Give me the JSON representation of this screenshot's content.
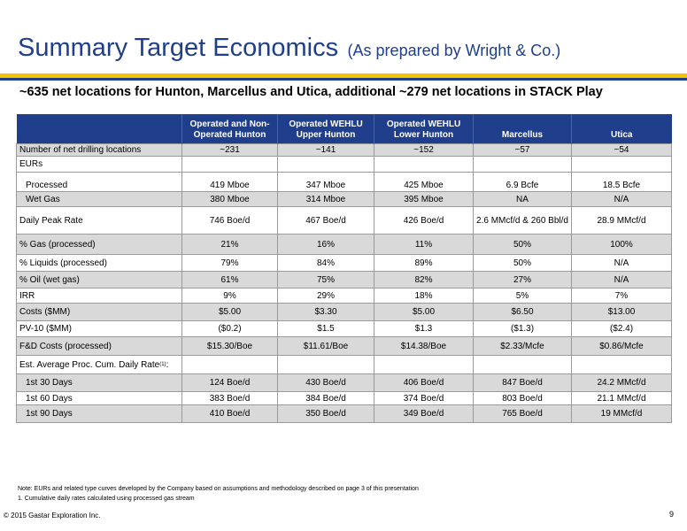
{
  "header": {
    "title": "Summary Target Economics",
    "title_sub": "(As prepared by Wright & Co.)",
    "subtitle": "~635 net locations for Hunton, Marcellus and Utica, additional ~279 net locations in STACK Play"
  },
  "colors": {
    "brand_navy": "#1f3e8c",
    "accent_gold": "#f5c200",
    "row_band": "#d9d9d9"
  },
  "table": {
    "columns": [
      "",
      "Operated and Non-\nOperated Hunton",
      "Operated WEHLU\nUpper Hunton",
      "Operated WEHLU\nLower Hunton",
      "Marcellus",
      "Utica"
    ],
    "rows": {
      "net_locations": {
        "label": "Number of net drilling locations",
        "values": [
          "~231",
          "~141",
          "~152",
          "~57",
          "~54"
        ]
      },
      "eurs": {
        "label": "EURs"
      },
      "processed": {
        "label": "Processed",
        "values": [
          "419 Mboe",
          "347 Mboe",
          "425 Mboe",
          "6.9 Bcfe",
          "18.5 Bcfe"
        ]
      },
      "wet_gas": {
        "label": "Wet Gas",
        "values": [
          "380 Mboe",
          "314 Mboe",
          "395 Mboe",
          "NA",
          "N/A"
        ]
      },
      "daily_peak_rate": {
        "label": "Daily Peak Rate",
        "values": [
          "746 Boe/d",
          "467 Boe/d",
          "426 Boe/d",
          "2.6 MMcf/d & 260 Bbl/d",
          "28.9 MMcf/d"
        ]
      },
      "pct_gas": {
        "label": "% Gas (processed)",
        "values": [
          "21%",
          "16%",
          "11%",
          "50%",
          "100%"
        ]
      },
      "pct_liquids": {
        "label": "% Liquids (processed)",
        "values": [
          "79%",
          "84%",
          "89%",
          "50%",
          "N/A"
        ]
      },
      "pct_oil": {
        "label": "% Oil (wet gas)",
        "values": [
          "61%",
          "75%",
          "82%",
          "27%",
          "N/A"
        ]
      },
      "irr": {
        "label": "IRR",
        "values": [
          "9%",
          "29%",
          "18%",
          "5%",
          "7%"
        ]
      },
      "costs": {
        "label": "Costs ($MM)",
        "values": [
          "$5.00",
          "$3.30",
          "$5.00",
          "$6.50",
          "$13.00"
        ]
      },
      "pv10": {
        "label": "PV-10 ($MM)",
        "values": [
          "($0.2)",
          "$1.5",
          "$1.3",
          "($1.3)",
          "($2.4)"
        ]
      },
      "fd_costs": {
        "label": "F&D Costs (processed)",
        "values": [
          "$15.30/Boe",
          "$11.61/Boe",
          "$14.38/Boe",
          "$2.33/Mcfe",
          "$0.86/Mcfe"
        ]
      },
      "cum_rate": {
        "label": "Est. Average Proc. Cum. Daily Rate",
        "footnote_ref": "(1)",
        "suffix": ":"
      },
      "days_30": {
        "label": "1st 30 Days",
        "values": [
          "124 Boe/d",
          "430 Boe/d",
          "406 Boe/d",
          "847 Boe/d",
          "24.2 MMcf/d"
        ]
      },
      "days_60": {
        "label": "1st 60 Days",
        "values": [
          "383 Boe/d",
          "384 Boe/d",
          "374 Boe/d",
          "803 Boe/d",
          "21.1 MMcf/d"
        ]
      },
      "days_90": {
        "label": "1st 90 Days",
        "values": [
          "410 Boe/d",
          "350 Boe/d",
          "349 Boe/d",
          "765 Boe/d",
          "19 MMcf/d"
        ]
      }
    }
  },
  "notes": {
    "note": "Note: EURs and related type curves developed by the Company based on assumptions and methodology described on page 3 of this presentation",
    "footnote_1": "1.    Cumulative daily rates calculated using processed gas stream"
  },
  "footer": {
    "copyright": "© 2015 Gastar Exploration Inc.",
    "page_number": "9"
  }
}
